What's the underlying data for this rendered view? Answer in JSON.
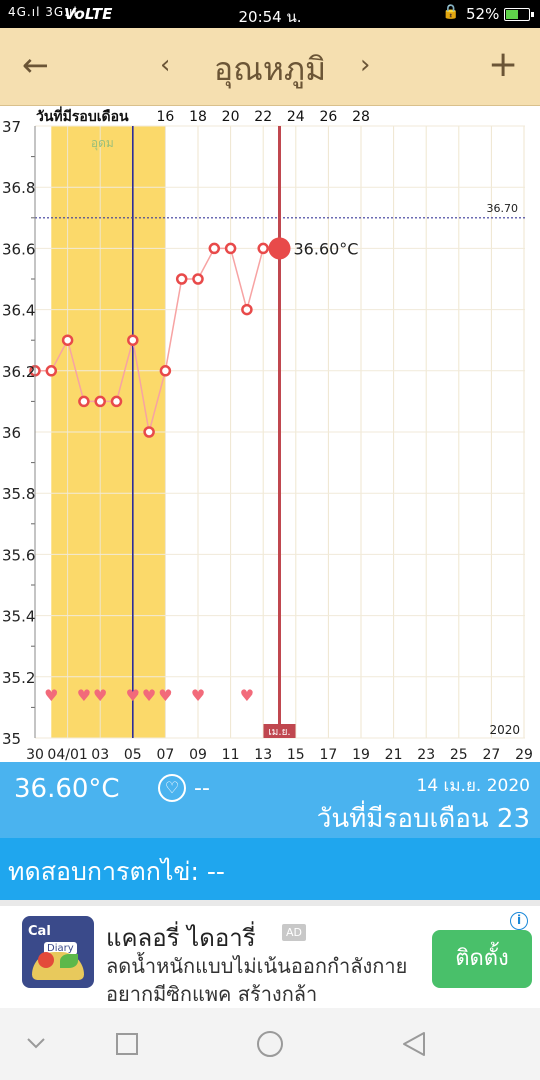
{
  "status_bar": {
    "signal": "4G.ıl 3G.ıl",
    "volte": "VoLTE",
    "time": "20:54 น.",
    "battery": "52%"
  },
  "header": {
    "title": "อุณหภูมิ",
    "back_icon": "arrow-left-icon",
    "prev_icon": "chevron-left-icon",
    "next_icon": "chevron-right-icon",
    "add_icon": "plus-icon"
  },
  "chart": {
    "top_axis_label": "วันที่มีรอบเดือน",
    "period_label": "อุดม",
    "threshold_label": "36.70",
    "current_label": "36.60°C",
    "month_label": "เม.ย.",
    "year_label": "2020",
    "top_ticks": [
      "16",
      "18",
      "20",
      "22",
      "24",
      "26",
      "28"
    ],
    "bottom_ticks": [
      "30",
      "04/01",
      "03",
      "05",
      "07",
      "09",
      "11",
      "13",
      "15",
      "17",
      "19",
      "21",
      "23",
      "25",
      "27",
      "29"
    ],
    "y_ticks": [
      "37",
      "36.8",
      "36.6",
      "36.4",
      "36.2",
      "36",
      "35.8",
      "35.6",
      "35.4",
      "35.2",
      "35"
    ]
  },
  "chart_data": {
    "type": "line",
    "series": [
      {
        "x": [
          0,
          1,
          2,
          3,
          4,
          5,
          6,
          7,
          8,
          9,
          10,
          11,
          12,
          13,
          14
        ],
        "values": [
          36.2,
          36.2,
          36.3,
          36.1,
          36.1,
          36.1,
          36.3,
          36.0,
          36.2,
          36.5,
          36.5,
          36.6,
          36.6,
          36.4,
          36.6
        ]
      }
    ],
    "selected": {
      "x": 15,
      "value": 36.6
    },
    "threshold": 36.7,
    "hearts_x": [
      1,
      3,
      4,
      6,
      7,
      8,
      10,
      13
    ],
    "period_range": [
      1,
      8
    ],
    "ovulation_x": 6,
    "ylim": [
      35,
      37
    ],
    "grid": true,
    "colors": {
      "line": "#f7a3a3",
      "point": "#e84a4a",
      "period": "#fbd96a",
      "today": "#c0474f",
      "ovulation": "#2c2c9a"
    }
  },
  "info": {
    "temp": "36.60°C",
    "heart_value": "--",
    "date": "14 เม.ย. 2020",
    "cycle_day": "วันที่มีรอบเดือน 23"
  },
  "ovulation_test": {
    "label": "ทดสอบการตกไข่: --"
  },
  "ad": {
    "title": "แคลอรี่ ไดอารี่",
    "badge": "AD",
    "description": "ลดน้ำหนักแบบไม่เน้นออกกำลังกาย อยากมีซิกแพค สร้างกล้า",
    "install": "ติดตั้ง",
    "logo_top": "Cal",
    "logo_sub": "Diary"
  },
  "nav": {
    "icons": [
      "chevron-down-icon",
      "recents-square-icon",
      "home-circle-icon",
      "back-triangle-icon"
    ]
  }
}
